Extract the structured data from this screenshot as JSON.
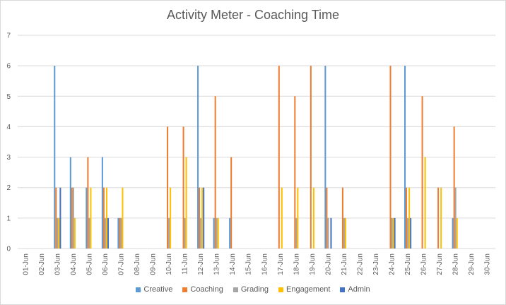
{
  "chart_data": {
    "type": "bar",
    "title": "Activity Meter - Coaching Time",
    "xlabel": "",
    "ylabel": "",
    "ylim": [
      0,
      7
    ],
    "grid": true,
    "legend_position": "bottom",
    "categories": [
      "01-Jun",
      "02-Jun",
      "03-Jun",
      "04-Jun",
      "05-Jun",
      "06-Jun",
      "07-Jun",
      "08-Jun",
      "09-Jun",
      "10-Jun",
      "11-Jun",
      "12-Jun",
      "13-Jun",
      "14-Jun",
      "15-Jun",
      "16-Jun",
      "17-Jun",
      "18-Jun",
      "19-Jun",
      "20-Jun",
      "21-Jun",
      "22-Jun",
      "23-Jun",
      "24-Jun",
      "25-Jun",
      "26-Jun",
      "27-Jun",
      "28-Jun",
      "29-Jun",
      "30-Jun"
    ],
    "series": [
      {
        "name": "Creative",
        "color": "#5b9bd5",
        "values": [
          0,
          0,
          6,
          3,
          2,
          3,
          1,
          0,
          0,
          0,
          0,
          6,
          1,
          1,
          0,
          0,
          0,
          0,
          0,
          6,
          0,
          0,
          0,
          0,
          6,
          0,
          0,
          1,
          0,
          0
        ]
      },
      {
        "name": "Coaching",
        "color": "#ed7d31",
        "values": [
          0,
          0,
          2,
          2,
          3,
          2,
          1,
          0,
          0,
          4,
          4,
          2,
          5,
          3,
          0,
          0,
          6,
          5,
          6,
          2,
          2,
          0,
          0,
          6,
          2,
          5,
          2,
          4,
          0,
          0
        ]
      },
      {
        "name": "Grading",
        "color": "#a5a5a5",
        "values": [
          0,
          0,
          1,
          2,
          1,
          1,
          1,
          0,
          0,
          1,
          1,
          1,
          1,
          0,
          0,
          0,
          0,
          1,
          0,
          1,
          1,
          0,
          0,
          1,
          1,
          0,
          0,
          2,
          0,
          0
        ]
      },
      {
        "name": "Engagement",
        "color": "#ffc000",
        "values": [
          0,
          0,
          1,
          1,
          2,
          2,
          2,
          0,
          0,
          2,
          3,
          2,
          1,
          0,
          0,
          0,
          2,
          2,
          2,
          0,
          1,
          0,
          0,
          1,
          2,
          3,
          2,
          1,
          0,
          0
        ]
      },
      {
        "name": "Admin",
        "color": "#4472c4",
        "values": [
          0,
          0,
          2,
          0,
          0,
          1,
          0,
          0,
          0,
          0,
          0,
          2,
          0,
          0,
          0,
          0,
          0,
          0,
          0,
          1,
          0,
          0,
          0,
          1,
          1,
          0,
          0,
          0,
          0,
          0
        ]
      }
    ]
  }
}
